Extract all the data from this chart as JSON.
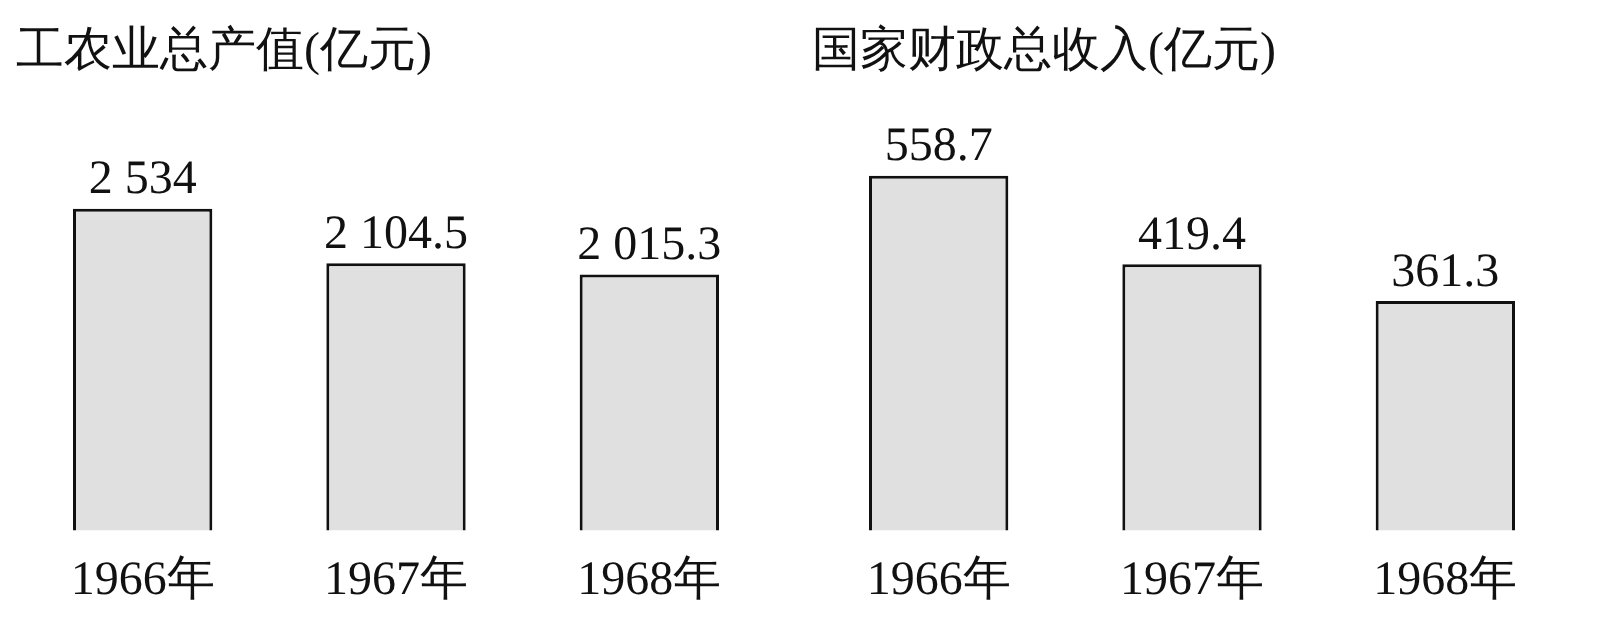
{
  "chart_data": [
    {
      "type": "bar",
      "title": "工农业总产值(亿元)",
      "categories": [
        "1966年",
        "1967年",
        "1968年"
      ],
      "values": [
        2534,
        2104.5,
        2015.3
      ],
      "value_labels": [
        "2 534",
        "2 104.5",
        "2 015.3"
      ],
      "color": "#e0e0e0"
    },
    {
      "type": "bar",
      "title": "国家财政总收入(亿元)",
      "categories": [
        "1966年",
        "1967年",
        "1968年"
      ],
      "values": [
        558.7,
        419.4,
        361.3
      ],
      "value_labels": [
        "558.7",
        "419.4",
        "361.3"
      ],
      "color": "#e0e0e0"
    }
  ]
}
